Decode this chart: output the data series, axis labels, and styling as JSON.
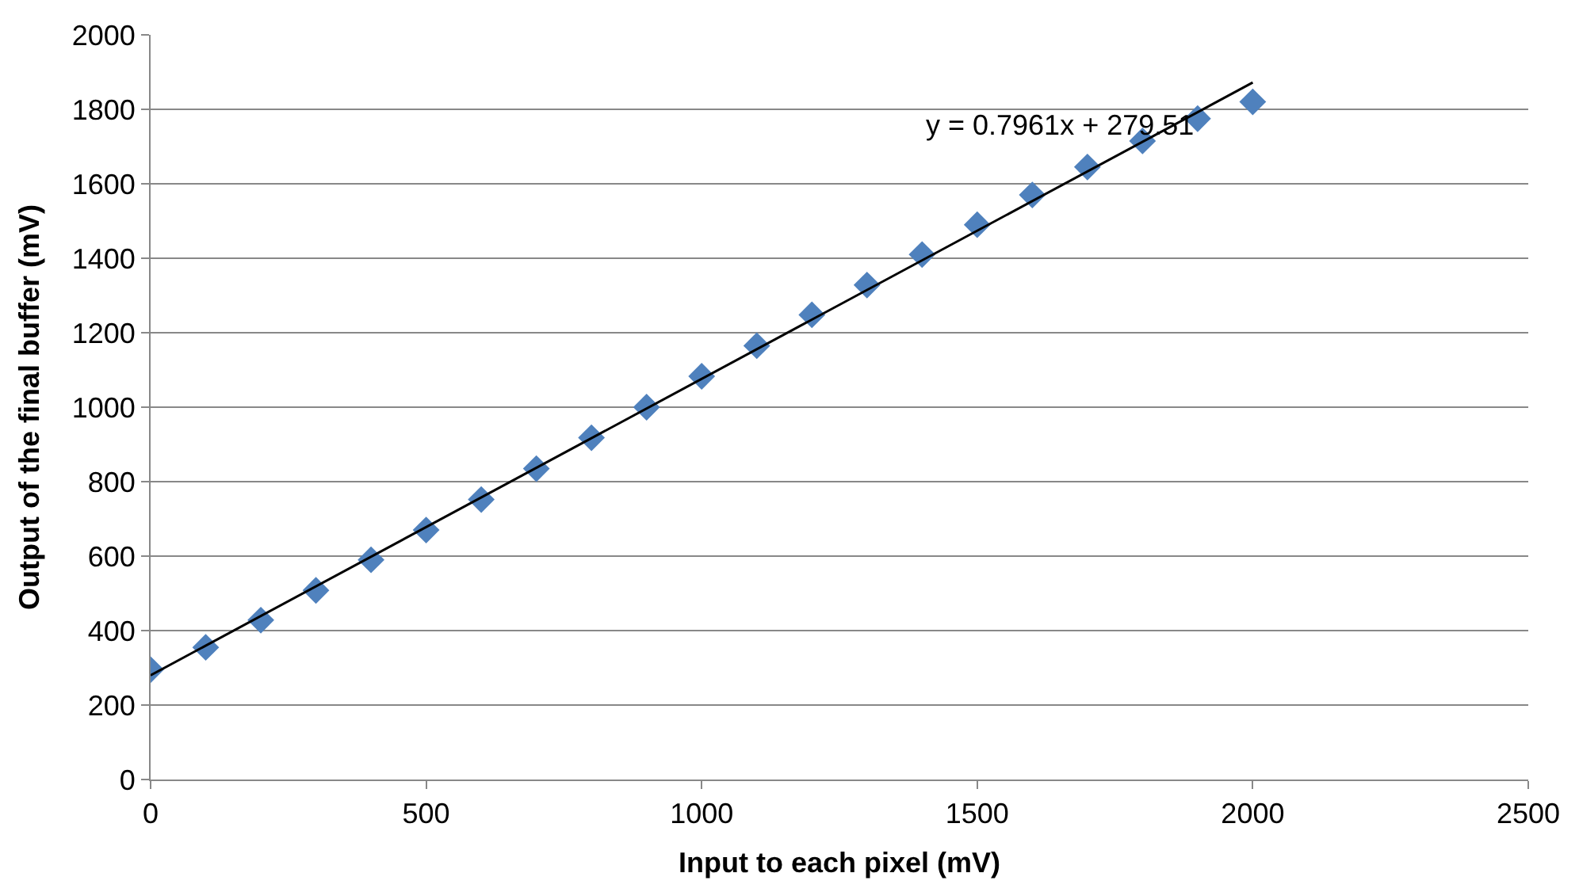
{
  "chart_data": {
    "type": "scatter",
    "xlabel": "Input to each pixel (mV)",
    "ylabel": "Output of the final buffer (mV)",
    "x": [
      0,
      100,
      200,
      300,
      400,
      500,
      600,
      700,
      800,
      900,
      1000,
      1100,
      1200,
      1300,
      1400,
      1500,
      1600,
      1700,
      1800,
      1900,
      2000
    ],
    "series": [
      {
        "color": "#4f81bd",
        "marker": "diamond",
        "values": [
          295,
          355,
          428,
          508,
          590,
          670,
          752,
          835,
          918,
          1000,
          1083,
          1165,
          1248,
          1328,
          1410,
          1490,
          1570,
          1645,
          1715,
          1775,
          1820
        ]
      },
      {
        "type": "line",
        "color": "#000000",
        "marker": "none",
        "x": [
          0,
          2000
        ],
        "values": [
          280,
          1872
        ]
      }
    ],
    "annotations": [
      "y = 0.7961x + 279.51"
    ],
    "xlim": [
      0,
      2500
    ],
    "xticks": [
      0,
      500,
      1000,
      1500,
      2000,
      2500
    ],
    "ylim": [
      0,
      2000
    ],
    "yticks": [
      0,
      200,
      400,
      600,
      800,
      1000,
      1200,
      1400,
      1600,
      1800,
      2000
    ],
    "grid": "y",
    "legend": false
  }
}
